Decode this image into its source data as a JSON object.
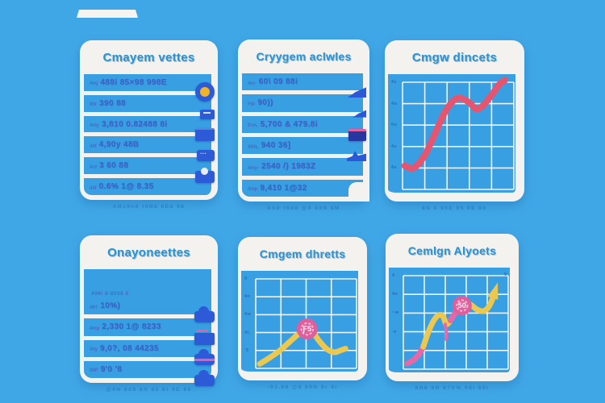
{
  "page": {
    "background": "#40a7e6",
    "card_white": "#f3f2ee",
    "accent_blue": "#2b93d2"
  },
  "tab": {
    "name": "window-tab"
  },
  "cards": [
    {
      "title": "Cmayem vettes",
      "caption": "ANs9n8 t9N8 9Ed 98",
      "type": "list",
      "rows": [
        {
          "prefix": "4mj",
          "text": "488i 85×98  998E",
          "icon": "coin"
        },
        {
          "prefix": "99r",
          "text": "390 88",
          "icon": "chip"
        },
        {
          "prefix": "4my",
          "text": "3,810 0.82488 8i",
          "icon": "panel"
        },
        {
          "prefix": "44f",
          "text": "4,90y 48B",
          "icon": "dots"
        },
        {
          "prefix": "4nf",
          "text": "3 60 88",
          "icon": "disk"
        },
        {
          "prefix": "44f",
          "text": "0.6% 1@ 8.35",
          "icon": null
        }
      ]
    },
    {
      "title": "Cryygem aclwles",
      "caption": "Ah9 t9d8 @9 89N 8M",
      "type": "list",
      "rows": [
        {
          "prefix": "4m-",
          "text": "60\\ 09 88i",
          "icon": "wing"
        },
        {
          "prefix": "F9r",
          "text": "90))",
          "icon": "wing-sm"
        },
        {
          "prefix": "Evn,",
          "text": "5,700 & 479.8i",
          "icon": "flag"
        },
        {
          "prefix": "40%,",
          "text": "940 36]",
          "icon": "bird"
        },
        {
          "prefix": "4my-",
          "text": "2540 /) 1983Z",
          "icon": null
        },
        {
          "prefix": "4mp",
          "text": "9,410 1@32",
          "icon": "corner"
        }
      ]
    },
    {
      "title": "Cmgw dincets",
      "caption": "8N 8 95E 95 9E 8b",
      "type": "chart",
      "chart_index": 0
    },
    {
      "title": "Onayoneettes",
      "caption": "@9N 8d8 8N 95 8t 9E 98",
      "type": "list",
      "toplabel": "498i 8-8038 8",
      "rows": [
        {
          "prefix": "49?",
          "text": "10%)",
          "icon": "cloud"
        },
        {
          "prefix": "4mp",
          "text": "2,330 1@ 8233",
          "icon": "folder"
        },
        {
          "prefix": "40y",
          "text": "9,0?, 08 44235",
          "icon": "cloud-pink"
        },
        {
          "prefix": "08P",
          "text": "9'0 '8",
          "icon": "cloud"
        }
      ]
    },
    {
      "title": "Cmgem dhretts",
      "caption": "-93.98 @8 89N 9r 8i",
      "type": "chart",
      "chart_index": 1
    },
    {
      "title": "Cemlgn Alyoets",
      "caption": "8N8 9N 8?V% 98i 89i",
      "type": "chart",
      "chart_index": 2
    }
  ],
  "chart_data": [
    {
      "type": "line",
      "title": "Cmgw dincets",
      "grid": {
        "cols": 5,
        "rows": 5
      },
      "yticks": [
        "4z",
        "4o",
        "0u",
        "4e",
        "4s"
      ],
      "series": [
        {
          "name": "growth",
          "color": "#e65570",
          "width": 8,
          "points": [
            [
              2,
              78
            ],
            [
              10,
              80
            ],
            [
              20,
              68
            ],
            [
              30,
              46
            ],
            [
              38,
              28
            ],
            [
              46,
              17
            ],
            [
              52,
              15
            ],
            [
              60,
              19
            ],
            [
              66,
              25
            ],
            [
              72,
              22
            ],
            [
              80,
              12
            ],
            [
              87,
              2
            ],
            [
              92,
              -2
            ]
          ]
        }
      ],
      "badges": []
    },
    {
      "type": "line",
      "title": "Cmgem dhretts",
      "grid": {
        "cols": 4,
        "rows": 5
      },
      "yticks": [
        "0",
        "4n",
        "4w",
        "4t.",
        "'9"
      ],
      "series": [
        {
          "name": "trend",
          "color": "#ecc84e",
          "width": 7,
          "points": [
            [
              4,
              95
            ],
            [
              14,
              88
            ],
            [
              24,
              80
            ],
            [
              34,
              70
            ],
            [
              42,
              62
            ],
            [
              50,
              55
            ],
            [
              56,
              58
            ],
            [
              62,
              68
            ],
            [
              70,
              78
            ],
            [
              78,
              82
            ],
            [
              84,
              80
            ],
            [
              89,
              78
            ]
          ]
        }
      ],
      "badges": [
        {
          "x": 51,
          "y": 56,
          "r": 13,
          "text": "Ƒ5",
          "color": "#df5f9e"
        }
      ]
    },
    {
      "type": "line",
      "title": "Cemlgn Alyoets",
      "grid": {
        "cols": 5,
        "rows": 5
      },
      "yticks": [
        "4",
        "4o",
        "~w",
        "-e"
      ],
      "corner_label": "9",
      "series": [
        {
          "name": "segment-pink-1",
          "color": "#e768a6",
          "width": 7,
          "points": [
            [
              4,
              94
            ],
            [
              10,
              90
            ],
            [
              15,
              84
            ],
            [
              19,
              76
            ]
          ]
        },
        {
          "name": "segment-yellow-1",
          "color": "#ecc84e",
          "width": 7,
          "points": [
            [
              19,
              76
            ],
            [
              24,
              60
            ],
            [
              29,
              48
            ],
            [
              34,
              42
            ],
            [
              38,
              44
            ],
            [
              41,
              52
            ],
            [
              45,
              48
            ]
          ]
        },
        {
          "name": "segment-pink-2",
          "color": "#e768a6",
          "width": 7,
          "points": [
            [
              45,
              48
            ],
            [
              50,
              39
            ],
            [
              55,
              33
            ]
          ]
        },
        {
          "name": "drip",
          "color": "#e768a6",
          "width": 4,
          "points": [
            [
              40,
              52
            ],
            [
              41,
              62
            ],
            [
              40.5,
              68
            ]
          ]
        },
        {
          "name": "segment-yellow-2",
          "color": "#ecc84e",
          "width": 7,
          "arrow": true,
          "points": [
            [
              58,
              30
            ],
            [
              64,
              31
            ],
            [
              70,
              36
            ],
            [
              76,
              38
            ],
            [
              81,
              34
            ],
            [
              85,
              25
            ],
            [
              87,
              18
            ]
          ]
        }
      ],
      "badges": [
        {
          "x": 56,
          "y": 32,
          "r": 12,
          "text": "50",
          "color": "#de5f9c"
        }
      ]
    }
  ]
}
